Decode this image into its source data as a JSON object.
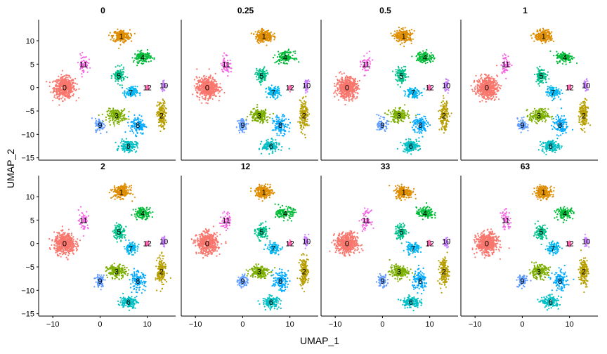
{
  "chart_data": {
    "type": "scatter",
    "xlabel": "UMAP_1",
    "ylabel": "UMAP_2",
    "xticks": [
      -10,
      0,
      10
    ],
    "yticks": [
      10,
      5,
      0,
      -5,
      -10,
      -15
    ],
    "xlim": [
      -13,
      16
    ],
    "ylim": [
      -15.5,
      14.5
    ],
    "panels": [
      "0",
      "0.25",
      "0.5",
      "1",
      "2",
      "12",
      "33",
      "63"
    ],
    "clusters": [
      {
        "name": "0",
        "color": "#F8766D",
        "center": [
          -7.5,
          0
        ],
        "spread": [
          2.2,
          2.2
        ],
        "count": 520
      },
      {
        "name": "1",
        "color": "#DE8C00",
        "center": [
          4.5,
          11
        ],
        "spread": [
          1.8,
          1.3
        ],
        "count": 220
      },
      {
        "name": "2",
        "color": "#B79F00",
        "center": [
          13,
          -6
        ],
        "spread": [
          0.9,
          3.0
        ],
        "count": 170
      },
      {
        "name": "3",
        "color": "#7CAE00",
        "center": [
          3.5,
          -6
        ],
        "spread": [
          2.0,
          1.4
        ],
        "count": 180
      },
      {
        "name": "4",
        "color": "#00BA38",
        "center": [
          9,
          6.5
        ],
        "spread": [
          1.8,
          1.2
        ],
        "count": 140
      },
      {
        "name": "5",
        "color": "#00C08B",
        "center": [
          4,
          2.5
        ],
        "spread": [
          1.2,
          1.6
        ],
        "count": 120
      },
      {
        "name": "6",
        "color": "#00BFC4",
        "center": [
          6,
          -12.5
        ],
        "spread": [
          1.8,
          1.2
        ],
        "count": 150
      },
      {
        "name": "7",
        "color": "#00B4F0",
        "center": [
          6.5,
          -1
        ],
        "spread": [
          1.4,
          1.2
        ],
        "count": 110
      },
      {
        "name": "8",
        "color": "#00A9FF",
        "center": [
          8,
          -8
        ],
        "spread": [
          1.6,
          2.0
        ],
        "count": 120
      },
      {
        "name": "9",
        "color": "#619CFF",
        "center": [
          0,
          -8
        ],
        "spread": [
          1.0,
          1.4
        ],
        "count": 80
      },
      {
        "name": "10",
        "color": "#C77CFF",
        "center": [
          13.5,
          0.5
        ],
        "spread": [
          0.5,
          1.2
        ],
        "count": 40
      },
      {
        "name": "11",
        "color": "#F564E3",
        "center": [
          -3.5,
          5
        ],
        "spread": [
          1.0,
          2.0
        ],
        "count": 60
      },
      {
        "name": "12",
        "color": "#FF64B0",
        "center": [
          10,
          0
        ],
        "spread": [
          0.4,
          0.6
        ],
        "count": 30
      }
    ]
  }
}
